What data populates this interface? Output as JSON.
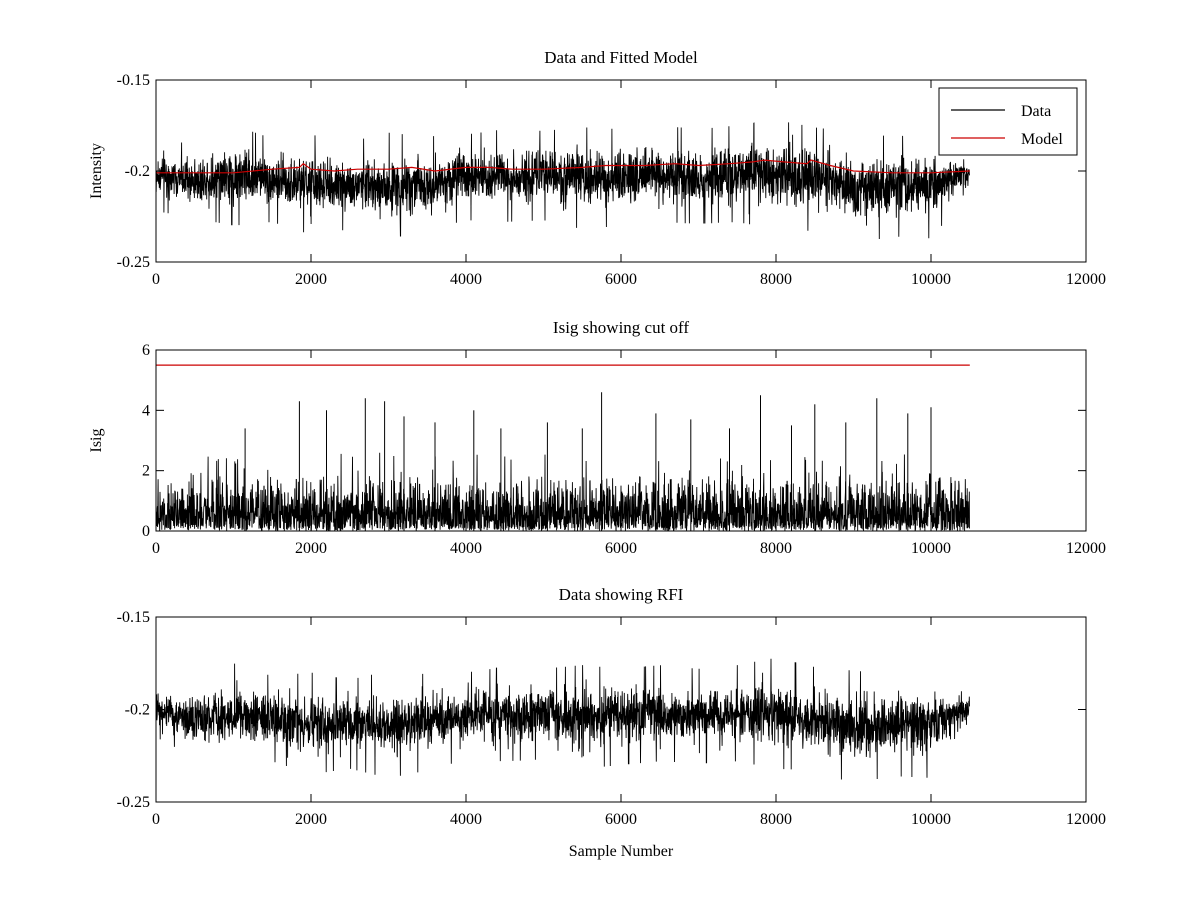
{
  "chart_data": [
    {
      "type": "line",
      "title": "Data and Fitted Model",
      "xlabel": "",
      "ylabel": "Intensity",
      "xlim": [
        0,
        12000
      ],
      "ylim": [
        -0.25,
        -0.15
      ],
      "x_ticks": [
        "0",
        "2000",
        "4000",
        "6000",
        "8000",
        "10000",
        "12000"
      ],
      "y_ticks": [
        "-0.25",
        "-0.2",
        "-0.15"
      ],
      "x_tick_values": [
        0,
        2000,
        4000,
        6000,
        8000,
        10000,
        12000
      ],
      "y_tick_values": [
        -0.25,
        -0.2,
        -0.15
      ],
      "legend": {
        "placement": "top-right",
        "entries": [
          "Data",
          "Model"
        ]
      },
      "grid": false,
      "series": [
        {
          "name": "Data",
          "color": "#000000",
          "kind": "noise",
          "n_samples": 10500,
          "envelope": {
            "x": [
              0,
              500,
              1000,
              1500,
              2000,
              2500,
              3000,
              3500,
              4000,
              4500,
              5000,
              5500,
              6000,
              6500,
              7000,
              7500,
              8000,
              8500,
              9000,
              9500,
              10000,
              10500
            ],
            "upper": [
              -0.183,
              -0.185,
              -0.175,
              -0.182,
              -0.18,
              -0.184,
              -0.179,
              -0.181,
              -0.18,
              -0.177,
              -0.178,
              -0.176,
              -0.177,
              -0.175,
              -0.177,
              -0.175,
              -0.172,
              -0.176,
              -0.179,
              -0.181,
              -0.18,
              -0.19
            ],
            "lower": [
              -0.222,
              -0.226,
              -0.23,
              -0.228,
              -0.235,
              -0.232,
              -0.237,
              -0.233,
              -0.227,
              -0.228,
              -0.227,
              -0.232,
              -0.23,
              -0.228,
              -0.229,
              -0.228,
              -0.232,
              -0.233,
              -0.24,
              -0.236,
              -0.237,
              -0.212
            ]
          }
        },
        {
          "name": "Model",
          "color": "#cc0000",
          "x": [
            0,
            500,
            1000,
            1500,
            1850,
            1900,
            2000,
            2300,
            2600,
            3000,
            3300,
            3600,
            4000,
            4300,
            4600,
            5000,
            5500,
            5800,
            6300,
            6700,
            7000,
            7400,
            7700,
            7850,
            8100,
            8400,
            8450,
            8700,
            9000,
            9500,
            10000,
            10500
          ],
          "y": [
            -0.201,
            -0.201,
            -0.201,
            -0.199,
            -0.198,
            -0.196,
            -0.199,
            -0.2,
            -0.199,
            -0.199,
            -0.198,
            -0.2,
            -0.198,
            -0.198,
            -0.199,
            -0.199,
            -0.198,
            -0.197,
            -0.197,
            -0.196,
            -0.197,
            -0.196,
            -0.195,
            -0.194,
            -0.195,
            -0.196,
            -0.194,
            -0.197,
            -0.2,
            -0.201,
            -0.201,
            -0.2
          ]
        }
      ]
    },
    {
      "type": "line",
      "title": "Isig showing cut off",
      "xlabel": "",
      "ylabel": "Isig",
      "xlim": [
        0,
        12000
      ],
      "ylim": [
        0,
        6
      ],
      "x_ticks": [
        "0",
        "2000",
        "4000",
        "6000",
        "8000",
        "10000",
        "12000"
      ],
      "y_ticks": [
        "0",
        "2",
        "4",
        "6"
      ],
      "x_tick_values": [
        0,
        2000,
        4000,
        6000,
        8000,
        10000,
        12000
      ],
      "y_tick_values": [
        0,
        2,
        4,
        6
      ],
      "grid": false,
      "series": [
        {
          "color": "#000000",
          "kind": "isig",
          "n_samples": 10500,
          "dense_level": 1.5,
          "peaks": {
            "x": [
              1150,
              1850,
              2200,
              2700,
              2950,
              3200,
              3600,
              4100,
              4450,
              5050,
              5500,
              5750,
              6450,
              6900,
              7400,
              7800,
              8200,
              8500,
              8900,
              9300,
              9700,
              10000
            ],
            "y": [
              3.4,
              4.3,
              4.0,
              4.4,
              4.3,
              3.8,
              3.6,
              4.0,
              3.4,
              3.6,
              3.4,
              4.6,
              3.9,
              3.7,
              3.4,
              4.5,
              3.5,
              4.2,
              3.6,
              4.4,
              3.9,
              4.1
            ]
          }
        },
        {
          "color": "#cc0000",
          "kind": "threshold",
          "x": [
            0,
            10500
          ],
          "y": [
            5.5,
            5.5
          ]
        }
      ]
    },
    {
      "type": "line",
      "title": "Data showing RFI",
      "xlabel": "Sample Number",
      "ylabel": "",
      "xlim": [
        0,
        12000
      ],
      "ylim": [
        -0.25,
        -0.15
      ],
      "x_ticks": [
        "0",
        "2000",
        "4000",
        "6000",
        "8000",
        "10000",
        "12000"
      ],
      "y_ticks": [
        "-0.25",
        "-0.2",
        "-0.15"
      ],
      "x_tick_values": [
        0,
        2000,
        4000,
        6000,
        8000,
        10000,
        12000
      ],
      "y_tick_values": [
        -0.25,
        -0.2,
        -0.15
      ],
      "grid": false,
      "series": [
        {
          "color": "#000000",
          "kind": "noise",
          "n_samples": 10500,
          "envelope": {
            "x": [
              0,
              500,
              1000,
              1500,
              2000,
              2500,
              3000,
              3500,
              4000,
              4500,
              5000,
              5500,
              6000,
              6500,
              7000,
              7500,
              8000,
              8500,
              9000,
              9500,
              10000,
              10500
            ],
            "upper": [
              -0.185,
              -0.186,
              -0.175,
              -0.182,
              -0.18,
              -0.184,
              -0.179,
              -0.181,
              -0.18,
              -0.177,
              -0.178,
              -0.176,
              -0.178,
              -0.176,
              -0.178,
              -0.176,
              -0.172,
              -0.177,
              -0.179,
              -0.181,
              -0.181,
              -0.186
            ],
            "lower": [
              -0.215,
              -0.226,
              -0.23,
              -0.228,
              -0.235,
              -0.232,
              -0.237,
              -0.233,
              -0.227,
              -0.228,
              -0.227,
              -0.232,
              -0.23,
              -0.228,
              -0.229,
              -0.228,
              -0.232,
              -0.233,
              -0.24,
              -0.236,
              -0.237,
              -0.212
            ]
          }
        }
      ]
    }
  ]
}
